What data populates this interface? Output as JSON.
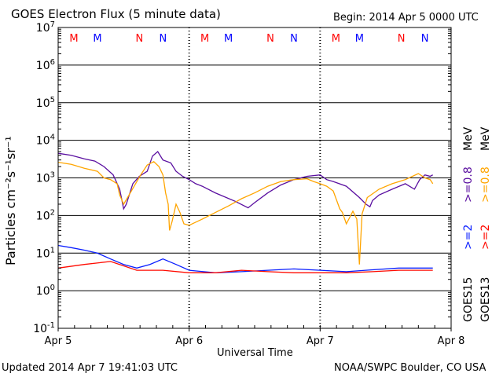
{
  "header": {
    "title": "GOES Electron Flux (5 minute data)",
    "begin": "Begin: 2014 Apr 5 0000 UTC"
  },
  "footer": {
    "updated": "Updated 2014 Apr  7 19:41:03 UTC",
    "credit": "NOAA/SWPC Boulder, CO USA"
  },
  "chart_data": {
    "type": "line",
    "xlabel": "Universal Time",
    "ylabel": "Particles cm⁻²s⁻¹sr⁻¹",
    "x_ticks": [
      "Apr 5",
      "Apr 6",
      "Apr 7",
      "Apr 8"
    ],
    "xlim_days": [
      0,
      3
    ],
    "ylim": [
      0.1,
      10000000
    ],
    "y_scale": "log",
    "y_tick_exponents": [
      -1,
      0,
      1,
      2,
      3,
      4,
      5,
      6,
      7
    ],
    "reference_level": 1000,
    "grid": true,
    "legend_right": {
      "goes15": "GOES15",
      "goes13": "GOES13",
      "ge2_blue": ">=2",
      "ge2_red": ">=2",
      "ge08_purple": ">=0.8",
      "ge08_orange": ">=0.8",
      "mev": "MeV"
    },
    "markers": [
      {
        "day": 0.12,
        "label": "M",
        "color": "#ff0000"
      },
      {
        "day": 0.3,
        "label": "M",
        "color": "#0000ff"
      },
      {
        "day": 0.62,
        "label": "N",
        "color": "#ff0000"
      },
      {
        "day": 0.8,
        "label": "N",
        "color": "#0000ff"
      },
      {
        "day": 1.12,
        "label": "M",
        "color": "#ff0000"
      },
      {
        "day": 1.3,
        "label": "M",
        "color": "#0000ff"
      },
      {
        "day": 1.62,
        "label": "N",
        "color": "#ff0000"
      },
      {
        "day": 1.8,
        "label": "N",
        "color": "#0000ff"
      },
      {
        "day": 2.12,
        "label": "M",
        "color": "#ff0000"
      },
      {
        "day": 2.3,
        "label": "M",
        "color": "#0000ff"
      },
      {
        "day": 2.62,
        "label": "N",
        "color": "#ff0000"
      },
      {
        "day": 2.8,
        "label": "N",
        "color": "#0000ff"
      }
    ],
    "series": [
      {
        "key": "purple",
        "color": "#5a0fa0",
        "points": [
          [
            0,
            4500
          ],
          [
            0.1,
            4000
          ],
          [
            0.2,
            3200
          ],
          [
            0.28,
            2800
          ],
          [
            0.35,
            2000
          ],
          [
            0.42,
            1200
          ],
          [
            0.47,
            500
          ],
          [
            0.5,
            150
          ],
          [
            0.52,
            200
          ],
          [
            0.57,
            700
          ],
          [
            0.62,
            1100
          ],
          [
            0.68,
            1500
          ],
          [
            0.72,
            3800
          ],
          [
            0.76,
            5000
          ],
          [
            0.8,
            3000
          ],
          [
            0.86,
            2500
          ],
          [
            0.9,
            1500
          ],
          [
            0.95,
            1100
          ],
          [
            1.0,
            900
          ],
          [
            1.05,
            700
          ],
          [
            1.1,
            600
          ],
          [
            1.2,
            400
          ],
          [
            1.35,
            240
          ],
          [
            1.45,
            160
          ],
          [
            1.5,
            220
          ],
          [
            1.6,
            400
          ],
          [
            1.7,
            650
          ],
          [
            1.8,
            900
          ],
          [
            1.9,
            1100
          ],
          [
            2.0,
            1200
          ],
          [
            2.05,
            900
          ],
          [
            2.1,
            800
          ],
          [
            2.2,
            600
          ],
          [
            2.3,
            300
          ],
          [
            2.35,
            200
          ],
          [
            2.38,
            170
          ],
          [
            2.4,
            250
          ],
          [
            2.45,
            350
          ],
          [
            2.55,
            500
          ],
          [
            2.65,
            700
          ],
          [
            2.72,
            500
          ],
          [
            2.76,
            900
          ],
          [
            2.8,
            1200
          ],
          [
            2.84,
            1100
          ],
          [
            2.86,
            1200
          ]
        ]
      },
      {
        "key": "orange",
        "color": "#ffa500",
        "points": [
          [
            0,
            2600
          ],
          [
            0.1,
            2300
          ],
          [
            0.2,
            1800
          ],
          [
            0.3,
            1500
          ],
          [
            0.35,
            1000
          ],
          [
            0.4,
            900
          ],
          [
            0.45,
            700
          ],
          [
            0.47,
            350
          ],
          [
            0.5,
            200
          ],
          [
            0.53,
            300
          ],
          [
            0.58,
            600
          ],
          [
            0.63,
            1200
          ],
          [
            0.68,
            2200
          ],
          [
            0.73,
            2700
          ],
          [
            0.77,
            2000
          ],
          [
            0.8,
            1200
          ],
          [
            0.82,
            400
          ],
          [
            0.84,
            200
          ],
          [
            0.85,
            40
          ],
          [
            0.87,
            70
          ],
          [
            0.9,
            200
          ],
          [
            0.93,
            120
          ],
          [
            0.96,
            60
          ],
          [
            1.0,
            55
          ],
          [
            1.1,
            80
          ],
          [
            1.2,
            120
          ],
          [
            1.3,
            180
          ],
          [
            1.4,
            280
          ],
          [
            1.5,
            400
          ],
          [
            1.6,
            600
          ],
          [
            1.7,
            800
          ],
          [
            1.8,
            900
          ],
          [
            1.9,
            950
          ],
          [
            1.95,
            800
          ],
          [
            2.0,
            700
          ],
          [
            2.05,
            600
          ],
          [
            2.1,
            450
          ],
          [
            2.15,
            150
          ],
          [
            2.17,
            120
          ],
          [
            2.2,
            60
          ],
          [
            2.25,
            130
          ],
          [
            2.28,
            80
          ],
          [
            2.3,
            5
          ],
          [
            2.32,
            110
          ],
          [
            2.36,
            300
          ],
          [
            2.45,
            500
          ],
          [
            2.55,
            700
          ],
          [
            2.65,
            900
          ],
          [
            2.75,
            1300
          ],
          [
            2.8,
            1000
          ],
          [
            2.84,
            900
          ],
          [
            2.86,
            700
          ]
        ]
      },
      {
        "key": "blue",
        "color": "#0a1eff",
        "points": [
          [
            0,
            16
          ],
          [
            0.1,
            14
          ],
          [
            0.2,
            12
          ],
          [
            0.3,
            10
          ],
          [
            0.4,
            7
          ],
          [
            0.5,
            5
          ],
          [
            0.6,
            4
          ],
          [
            0.7,
            5
          ],
          [
            0.8,
            7
          ],
          [
            0.9,
            5
          ],
          [
            1.0,
            3.5
          ],
          [
            1.2,
            3
          ],
          [
            1.4,
            3.2
          ],
          [
            1.6,
            3.5
          ],
          [
            1.8,
            3.8
          ],
          [
            2.0,
            3.5
          ],
          [
            2.2,
            3.2
          ],
          [
            2.4,
            3.6
          ],
          [
            2.6,
            4
          ],
          [
            2.86,
            4
          ]
        ]
      },
      {
        "key": "red",
        "color": "#ff0a00",
        "points": [
          [
            0,
            4
          ],
          [
            0.2,
            5
          ],
          [
            0.4,
            6
          ],
          [
            0.6,
            3.5
          ],
          [
            0.8,
            3.5
          ],
          [
            1.0,
            3
          ],
          [
            1.2,
            3
          ],
          [
            1.4,
            3.5
          ],
          [
            1.6,
            3.2
          ],
          [
            1.8,
            3
          ],
          [
            2.0,
            3
          ],
          [
            2.2,
            3
          ],
          [
            2.4,
            3.2
          ],
          [
            2.6,
            3.5
          ],
          [
            2.86,
            3.5
          ]
        ]
      }
    ]
  }
}
